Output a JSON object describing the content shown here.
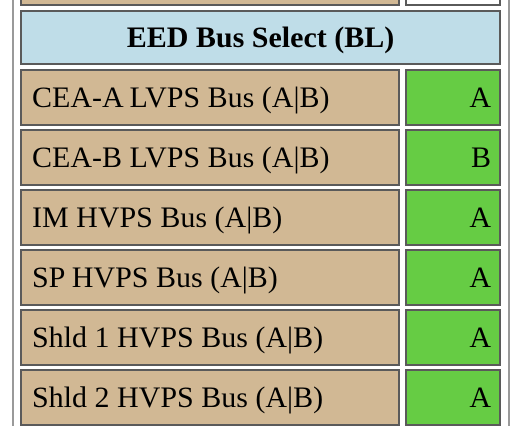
{
  "header": {
    "title": "EED Bus Select (BL)"
  },
  "colors": {
    "header_bg": "#bfdde8",
    "label_bg": "#d1b894",
    "value_bg": "#66cc44"
  },
  "rows": [
    {
      "label": "CEA-A LVPS Bus (A|B)",
      "value": "A"
    },
    {
      "label": "CEA-B LVPS Bus (A|B)",
      "value": "B"
    },
    {
      "label": "IM HVPS Bus (A|B)",
      "value": "A"
    },
    {
      "label": "SP HVPS Bus (A|B)",
      "value": "A"
    },
    {
      "label": "Shld 1 HVPS Bus (A|B)",
      "value": "A"
    },
    {
      "label": "Shld 2 HVPS Bus (A|B)",
      "value": "A"
    }
  ]
}
